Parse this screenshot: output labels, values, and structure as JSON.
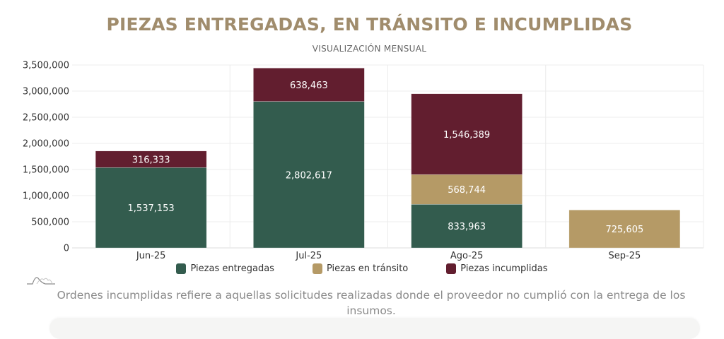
{
  "header": {
    "title": "PIEZAS ENTREGADAS, EN TRÁNSITO E INCUMPLIDAS",
    "subtitle": "VISUALIZACIÓN MENSUAL"
  },
  "chart_data": {
    "type": "bar",
    "stacked": true,
    "title": "PIEZAS ENTREGADAS, EN TRÁNSITO E INCUMPLIDAS",
    "subtitle": "VISUALIZACIÓN MENSUAL",
    "xlabel": "",
    "ylabel": "",
    "categories": [
      "Jun-25",
      "Jul-25",
      "Ago-25",
      "Sep-25"
    ],
    "series": [
      {
        "name": "Piezas entregadas",
        "color": "#335c4e",
        "values": [
          1537153,
          2802617,
          833963,
          null
        ]
      },
      {
        "name": "Piezas en tránsito",
        "color": "#b59a66",
        "values": [
          null,
          null,
          568744,
          725605
        ]
      },
      {
        "name": "Piezas incumplidas",
        "color": "#621e2f",
        "values": [
          316333,
          638463,
          1546389,
          null
        ]
      }
    ],
    "ylim": [
      0,
      3500000
    ],
    "yticks": [
      0,
      500000,
      1000000,
      1500000,
      2000000,
      2500000,
      3000000,
      3500000
    ],
    "ytick_labels": [
      "0",
      "500,000",
      "1,000,000",
      "1,500,000",
      "2,000,000",
      "2,500,000",
      "3,000,000",
      "3,500,000"
    ],
    "grid": true,
    "data_labels": true,
    "legend_position": "bottom"
  },
  "legend": [
    {
      "label": "Piezas entregadas",
      "color": "#335c4e"
    },
    {
      "label": "Piezas en tránsito",
      "color": "#b59a66"
    },
    {
      "label": "Piezas incumplidas",
      "color": "#621e2f"
    }
  ],
  "logo": {
    "icon": "mountains-logo-icon"
  },
  "note": "Ordenes incumplidas refiere a aquellas solicitudes realizadas donde el proveedor no cumplió con la entrega de los insumos."
}
